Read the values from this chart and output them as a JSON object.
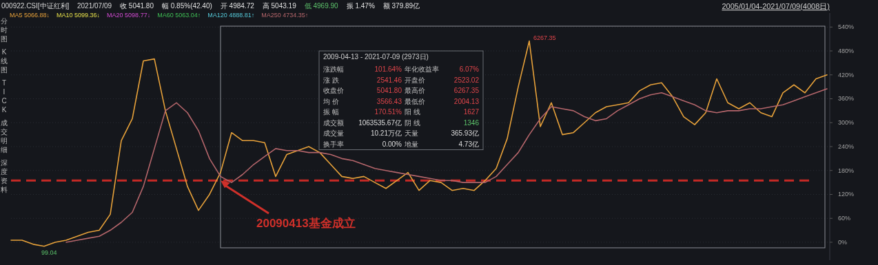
{
  "chart_data": {
    "type": "line",
    "title": "000922.CSI[中证红利]",
    "categories": [
      null,
      null,
      null,
      null,
      null,
      null,
      null,
      null,
      null,
      null,
      null,
      null,
      null,
      null,
      null,
      null,
      null,
      null,
      null,
      null,
      null,
      null,
      null,
      null,
      null,
      null,
      null,
      null,
      null,
      null,
      null,
      null,
      null,
      null,
      null,
      null,
      null,
      null,
      null,
      null,
      null,
      null,
      null,
      null,
      null,
      null,
      null,
      null,
      null,
      null,
      null,
      null,
      null,
      null,
      null,
      null,
      null,
      null,
      null,
      null,
      null,
      null,
      null,
      null,
      null,
      null,
      null,
      null,
      null,
      null,
      null,
      null,
      null,
      null,
      null
    ],
    "series": [
      {
        "color": "#e8a23a",
        "values": [
          5,
          5,
          -5,
          -10,
          0,
          5,
          15,
          25,
          30,
          70,
          255,
          310,
          455,
          460,
          330,
          235,
          140,
          80,
          120,
          175,
          275,
          255,
          255,
          250,
          165,
          220,
          230,
          240,
          225,
          195,
          165,
          160,
          165,
          150,
          135,
          155,
          175,
          130,
          155,
          150,
          130,
          135,
          130,
          155,
          185,
          260,
          390,
          505,
          290,
          350,
          270,
          275,
          300,
          325,
          340,
          345,
          350,
          380,
          395,
          400,
          365,
          315,
          295,
          325,
          410,
          350,
          335,
          350,
          325,
          315,
          375,
          395,
          375,
          410,
          420
        ]
      },
      {
        "color": "#b5666b",
        "values": [
          null,
          null,
          null,
          null,
          null,
          0,
          5,
          10,
          15,
          30,
          50,
          75,
          140,
          235,
          330,
          350,
          325,
          280,
          210,
          165,
          150,
          170,
          195,
          215,
          235,
          230,
          230,
          225,
          225,
          220,
          210,
          205,
          195,
          185,
          180,
          175,
          170,
          165,
          160,
          155,
          155,
          150,
          150,
          150,
          165,
          195,
          225,
          270,
          310,
          340,
          335,
          330,
          315,
          305,
          310,
          330,
          345,
          360,
          370,
          375,
          365,
          355,
          345,
          330,
          325,
          330,
          330,
          335,
          335,
          340,
          345,
          355,
          365,
          375,
          385
        ]
      }
    ],
    "ylim": [
      -45,
      575
    ],
    "yticks": [
      {
        "value": 0,
        "label": "0%"
      },
      {
        "value": 60,
        "label": "60%"
      },
      {
        "value": 120,
        "label": "120%"
      },
      {
        "value": 180,
        "label": "180%"
      },
      {
        "value": 240,
        "label": "240%"
      },
      {
        "value": 300,
        "label": "300%"
      },
      {
        "value": 360,
        "label": "360%"
      },
      {
        "value": 420,
        "label": "420%"
      },
      {
        "value": 480,
        "label": "480%"
      },
      {
        "value": 540,
        "label": "540%"
      }
    ],
    "grid": "y",
    "tick_labels": "y",
    "ref_lines": [
      {
        "axis": "y",
        "value": 155,
        "color": "#c62a25",
        "line_style": "dashed"
      }
    ],
    "annotations": [
      "2021/07/09",
      "收 5041.80",
      "幅 0.85%(42.40)",
      "开 4984.72",
      "高 5043.19",
      "低 4969.90",
      "振 1.47%",
      "额 379.89亿",
      "MA5 5066.88↓",
      "MA10 5099.36↓",
      "MA20 5098.77↓",
      "MA60 5063.04↑",
      "MA120 4888.81↑",
      "MA250 4734.35↑",
      "2005/01/04-2021/07/09(4008日)",
      "分时图",
      "K线图",
      "TICK",
      "成交明细",
      "深度资料",
      "2009-04-13 - 2021-07-09 (2973日)",
      "涨跌幅",
      "101.64%",
      "年化收益率",
      "6.07%",
      "涨 跌",
      "2541.46",
      "开盘价",
      "2523.02",
      "收盘价",
      "5041.80",
      "最高价",
      "6267.35",
      "均 价",
      "3566.43",
      "最低价",
      "2004.13",
      "振 幅",
      "170.51%",
      "阳 线",
      "1627",
      "成交额",
      "1063535.67亿",
      "阴 线",
      "1346",
      "成交量",
      "10.21万亿",
      "天量",
      "365.93亿",
      "换手率",
      "0.00%",
      "地量",
      "4.73亿",
      "6267.35",
      "99.04",
      "20090413基金成立"
    ]
  }
}
